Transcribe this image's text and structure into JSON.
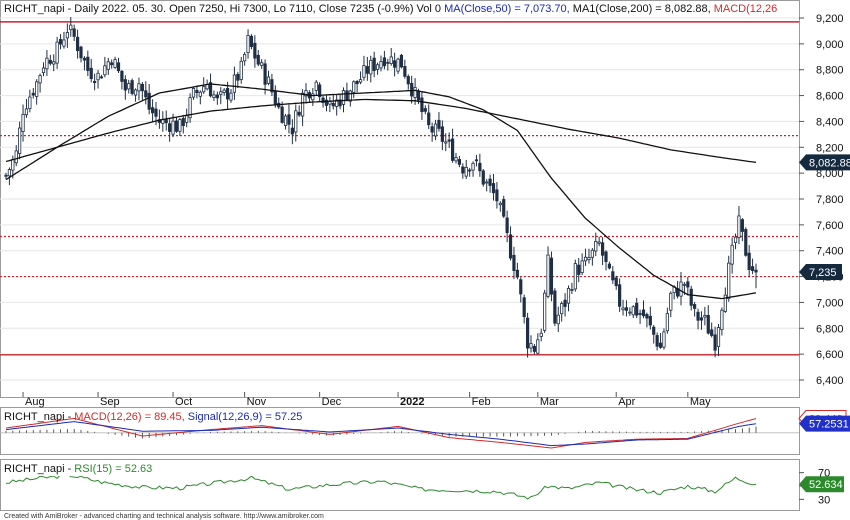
{
  "header": {
    "main_prefix": "RICHT_napi - Daily 2022. 05. 30. Open 7250, Hi 7300, Lo 7110, Close 7235 (-0.9%) Vol 0 ",
    "ma50_text": "MA(Close,50) = 7,073.70,",
    "ma200_text": " MA1(Close,200) = 8,082.88, ",
    "macd_cut_text": "MACD(12,26"
  },
  "macd_header": {
    "prefix": "RICHT_napi - ",
    "macd_text": "MACD(12,26) = 89.45,",
    "signal_text": " Signal(12,26,9) = 57.25"
  },
  "rsi_header": {
    "prefix": "RICHT_napi - ",
    "rsi_text": "RSI(15) = 52.63"
  },
  "footer": "Created with AmiBroker - advanced charting and technical analysis software. http://www.amibroker.com",
  "colors": {
    "up": "#1f2f45",
    "down": "#1f2f45",
    "ma": "#111111",
    "level_dotted": "#c8232c",
    "level_solid": "#c8232c",
    "macd": "#d42a2a",
    "signal": "#1a2ab8",
    "rsi": "#2c8a2c",
    "badge_dark": "#15293f",
    "badge_blue": "#2030c8",
    "badge_red": "#d42a2a",
    "badge_green": "#2c8a2c"
  },
  "badges": {
    "ma200": "8,082.88",
    "close": "7,235",
    "macd": "89.448",
    "signal": "57.2531",
    "rsi": "52.634"
  },
  "chart_data": [
    {
      "type": "candlestick",
      "title": "RICHT_napi - Daily 2022. 05. 30.",
      "ylim": [
        6250,
        9250
      ],
      "y_ticks": [
        "9,200",
        "9,000",
        "8,800",
        "8,600",
        "8,400",
        "8,200",
        "8,000",
        "7,800",
        "7,600",
        "7,400",
        "7,200",
        "7,000",
        "6,800",
        "6,600",
        "6,400"
      ],
      "x_tick_labels": [
        "Aug",
        "Sep",
        "Oct",
        "Nov",
        "Dec",
        "2022",
        "Feb",
        "Mar",
        "Apr",
        "May"
      ],
      "anchors": [
        {
          "date": "2021-07-26",
          "close": 7980
        },
        {
          "date": "2021-07-29",
          "close": 8150
        },
        {
          "date": "2021-08-02",
          "close": 8500
        },
        {
          "date": "2021-08-06",
          "close": 8700
        },
        {
          "date": "2021-08-10",
          "close": 8850
        },
        {
          "date": "2021-08-16",
          "close": 8950
        },
        {
          "date": "2021-08-19",
          "close": 9120
        },
        {
          "date": "2021-08-23",
          "close": 9050
        },
        {
          "date": "2021-08-27",
          "close": 8800
        },
        {
          "date": "2021-09-01",
          "close": 8750
        },
        {
          "date": "2021-09-07",
          "close": 8900
        },
        {
          "date": "2021-09-13",
          "close": 8650
        },
        {
          "date": "2021-09-17",
          "close": 8700
        },
        {
          "date": "2021-09-22",
          "close": 8500
        },
        {
          "date": "2021-09-27",
          "close": 8400
        },
        {
          "date": "2021-10-01",
          "close": 8380
        },
        {
          "date": "2021-10-05",
          "close": 8350
        },
        {
          "date": "2021-10-11",
          "close": 8600
        },
        {
          "date": "2021-10-15",
          "close": 8700
        },
        {
          "date": "2021-10-20",
          "close": 8550
        },
        {
          "date": "2021-10-26",
          "close": 8650
        },
        {
          "date": "2021-10-29",
          "close": 8800
        },
        {
          "date": "2021-11-02",
          "close": 9020
        },
        {
          "date": "2021-11-05",
          "close": 8850
        },
        {
          "date": "2021-11-10",
          "close": 8700
        },
        {
          "date": "2021-11-15",
          "close": 8500
        },
        {
          "date": "2021-11-19",
          "close": 8350
        },
        {
          "date": "2021-11-24",
          "close": 8600
        },
        {
          "date": "2021-11-30",
          "close": 8700
        },
        {
          "date": "2021-12-06",
          "close": 8500
        },
        {
          "date": "2021-12-10",
          "close": 8600
        },
        {
          "date": "2021-12-16",
          "close": 8700
        },
        {
          "date": "2021-12-21",
          "close": 8800
        },
        {
          "date": "2021-12-28",
          "close": 8900
        },
        {
          "date": "2022-01-04",
          "close": 8850
        },
        {
          "date": "2022-01-10",
          "close": 8600
        },
        {
          "date": "2022-01-14",
          "close": 8350
        },
        {
          "date": "2022-01-19",
          "close": 8300
        },
        {
          "date": "2022-01-24",
          "close": 8200
        },
        {
          "date": "2022-01-28",
          "close": 8050
        },
        {
          "date": "2022-02-02",
          "close": 8100
        },
        {
          "date": "2022-02-07",
          "close": 7950
        },
        {
          "date": "2022-02-11",
          "close": 7800
        },
        {
          "date": "2022-02-16",
          "close": 7500
        },
        {
          "date": "2022-02-21",
          "close": 7200
        },
        {
          "date": "2022-02-24",
          "close": 6700
        },
        {
          "date": "2022-02-28",
          "close": 6650
        },
        {
          "date": "2022-03-02",
          "close": 6800
        },
        {
          "date": "2022-03-04",
          "close": 7300
        },
        {
          "date": "2022-03-08",
          "close": 6850
        },
        {
          "date": "2022-03-11",
          "close": 7000
        },
        {
          "date": "2022-03-16",
          "close": 7250
        },
        {
          "date": "2022-03-21",
          "close": 7300
        },
        {
          "date": "2022-03-25",
          "close": 7450
        },
        {
          "date": "2022-03-30",
          "close": 7200
        },
        {
          "date": "2022-04-04",
          "close": 7000
        },
        {
          "date": "2022-04-08",
          "close": 6950
        },
        {
          "date": "2022-04-13",
          "close": 6900
        },
        {
          "date": "2022-04-20",
          "close": 6650
        },
        {
          "date": "2022-04-25",
          "close": 7050
        },
        {
          "date": "2022-04-29",
          "close": 7150
        },
        {
          "date": "2022-05-04",
          "close": 6900
        },
        {
          "date": "2022-05-09",
          "close": 6850
        },
        {
          "date": "2022-05-12",
          "close": 6700
        },
        {
          "date": "2022-05-16",
          "close": 7000
        },
        {
          "date": "2022-05-20",
          "close": 7500
        },
        {
          "date": "2022-05-23",
          "close": 7600
        },
        {
          "date": "2022-05-26",
          "close": 7300
        },
        {
          "date": "2022-05-30",
          "close": 7235
        }
      ],
      "last_candle": {
        "date": "2022-05-30",
        "open": 7250,
        "high": 7300,
        "low": 7110,
        "close": 7235
      },
      "ma50": {
        "label": "MA(Close,50)",
        "last": 7073.7,
        "points": [
          {
            "date": "2021-07-26",
            "value": 7950
          },
          {
            "date": "2021-08-16",
            "value": 8200
          },
          {
            "date": "2021-09-06",
            "value": 8440
          },
          {
            "date": "2021-09-27",
            "value": 8620
          },
          {
            "date": "2021-10-18",
            "value": 8690
          },
          {
            "date": "2021-11-08",
            "value": 8650
          },
          {
            "date": "2021-11-29",
            "value": 8600
          },
          {
            "date": "2021-12-20",
            "value": 8620
          },
          {
            "date": "2022-01-10",
            "value": 8640
          },
          {
            "date": "2022-01-24",
            "value": 8590
          },
          {
            "date": "2022-02-07",
            "value": 8490
          },
          {
            "date": "2022-02-21",
            "value": 8330
          },
          {
            "date": "2022-03-07",
            "value": 7960
          },
          {
            "date": "2022-03-21",
            "value": 7650
          },
          {
            "date": "2022-04-04",
            "value": 7420
          },
          {
            "date": "2022-04-18",
            "value": 7210
          },
          {
            "date": "2022-05-02",
            "value": 7060
          },
          {
            "date": "2022-05-16",
            "value": 7030
          },
          {
            "date": "2022-05-30",
            "value": 7074
          }
        ]
      },
      "ma200": {
        "label": "MA1(Close,200)",
        "last": 8082.88,
        "points": [
          {
            "date": "2021-07-26",
            "value": 8090
          },
          {
            "date": "2021-08-16",
            "value": 8200
          },
          {
            "date": "2021-09-06",
            "value": 8310
          },
          {
            "date": "2021-09-27",
            "value": 8410
          },
          {
            "date": "2021-10-18",
            "value": 8480
          },
          {
            "date": "2021-11-08",
            "value": 8520
          },
          {
            "date": "2021-11-29",
            "value": 8550
          },
          {
            "date": "2021-12-20",
            "value": 8570
          },
          {
            "date": "2022-01-10",
            "value": 8560
          },
          {
            "date": "2022-01-31",
            "value": 8500
          },
          {
            "date": "2022-02-21",
            "value": 8420
          },
          {
            "date": "2022-03-14",
            "value": 8340
          },
          {
            "date": "2022-04-04",
            "value": 8270
          },
          {
            "date": "2022-04-25",
            "value": 8180
          },
          {
            "date": "2022-05-16",
            "value": 8120
          },
          {
            "date": "2022-05-30",
            "value": 8083
          }
        ]
      },
      "levels": [
        {
          "value": 9170,
          "style": "solid"
        },
        {
          "value": 8290,
          "style": "dotted"
        },
        {
          "value": 7510,
          "style": "dotted"
        },
        {
          "value": 7200,
          "style": "dotted"
        },
        {
          "value": 6595,
          "style": "solid"
        }
      ]
    },
    {
      "type": "line",
      "title": "MACD(12,26) / Signal(12,26,9)",
      "ylim": [
        -120,
        130
      ],
      "series": [
        {
          "name": "MACD(12,26)",
          "last": 89.45,
          "points": [
            {
              "date": "2021-07-26",
              "value": 30
            },
            {
              "date": "2021-08-23",
              "value": 90
            },
            {
              "date": "2021-09-20",
              "value": -20
            },
            {
              "date": "2021-10-18",
              "value": 20
            },
            {
              "date": "2021-11-08",
              "value": 45
            },
            {
              "date": "2021-12-06",
              "value": -10
            },
            {
              "date": "2022-01-03",
              "value": 40
            },
            {
              "date": "2022-01-24",
              "value": -30
            },
            {
              "date": "2022-02-14",
              "value": -60
            },
            {
              "date": "2022-03-07",
              "value": -95
            },
            {
              "date": "2022-03-21",
              "value": -60
            },
            {
              "date": "2022-04-11",
              "value": -40
            },
            {
              "date": "2022-05-02",
              "value": -35
            },
            {
              "date": "2022-05-23",
              "value": 60
            },
            {
              "date": "2022-05-30",
              "value": 89
            }
          ]
        },
        {
          "name": "Signal(12,26,9)",
          "last": 57.25,
          "points": [
            {
              "date": "2021-07-26",
              "value": 20
            },
            {
              "date": "2021-08-23",
              "value": 70
            },
            {
              "date": "2021-09-20",
              "value": 10
            },
            {
              "date": "2021-10-18",
              "value": 15
            },
            {
              "date": "2021-11-08",
              "value": 35
            },
            {
              "date": "2021-12-06",
              "value": 5
            },
            {
              "date": "2022-01-03",
              "value": 30
            },
            {
              "date": "2022-01-24",
              "value": -10
            },
            {
              "date": "2022-02-14",
              "value": -40
            },
            {
              "date": "2022-03-07",
              "value": -80
            },
            {
              "date": "2022-03-21",
              "value": -70
            },
            {
              "date": "2022-04-11",
              "value": -45
            },
            {
              "date": "2022-05-02",
              "value": -40
            },
            {
              "date": "2022-05-23",
              "value": 40
            },
            {
              "date": "2022-05-30",
              "value": 57
            }
          ]
        }
      ]
    },
    {
      "type": "line",
      "title": "RSI(15)",
      "ylim": [
        20,
        80
      ],
      "y_ticks": [
        "70",
        "50",
        "30"
      ],
      "series": [
        {
          "name": "RSI(15)",
          "last": 52.63,
          "points": [
            {
              "date": "2021-07-26",
              "value": 55
            },
            {
              "date": "2021-08-09",
              "value": 62
            },
            {
              "date": "2021-08-20",
              "value": 66
            },
            {
              "date": "2021-09-03",
              "value": 55
            },
            {
              "date": "2021-09-20",
              "value": 48
            },
            {
              "date": "2021-10-05",
              "value": 47
            },
            {
              "date": "2021-10-20",
              "value": 55
            },
            {
              "date": "2021-11-03",
              "value": 62
            },
            {
              "date": "2021-11-18",
              "value": 45
            },
            {
              "date": "2021-12-06",
              "value": 52
            },
            {
              "date": "2021-12-27",
              "value": 57
            },
            {
              "date": "2022-01-12",
              "value": 45
            },
            {
              "date": "2022-01-26",
              "value": 44
            },
            {
              "date": "2022-02-11",
              "value": 42
            },
            {
              "date": "2022-02-25",
              "value": 32
            },
            {
              "date": "2022-03-04",
              "value": 50
            },
            {
              "date": "2022-03-14",
              "value": 46
            },
            {
              "date": "2022-03-25",
              "value": 55
            },
            {
              "date": "2022-04-08",
              "value": 45
            },
            {
              "date": "2022-04-20",
              "value": 40
            },
            {
              "date": "2022-05-02",
              "value": 50
            },
            {
              "date": "2022-05-12",
              "value": 42
            },
            {
              "date": "2022-05-20",
              "value": 62
            },
            {
              "date": "2022-05-30",
              "value": 52.6
            }
          ]
        }
      ]
    }
  ]
}
